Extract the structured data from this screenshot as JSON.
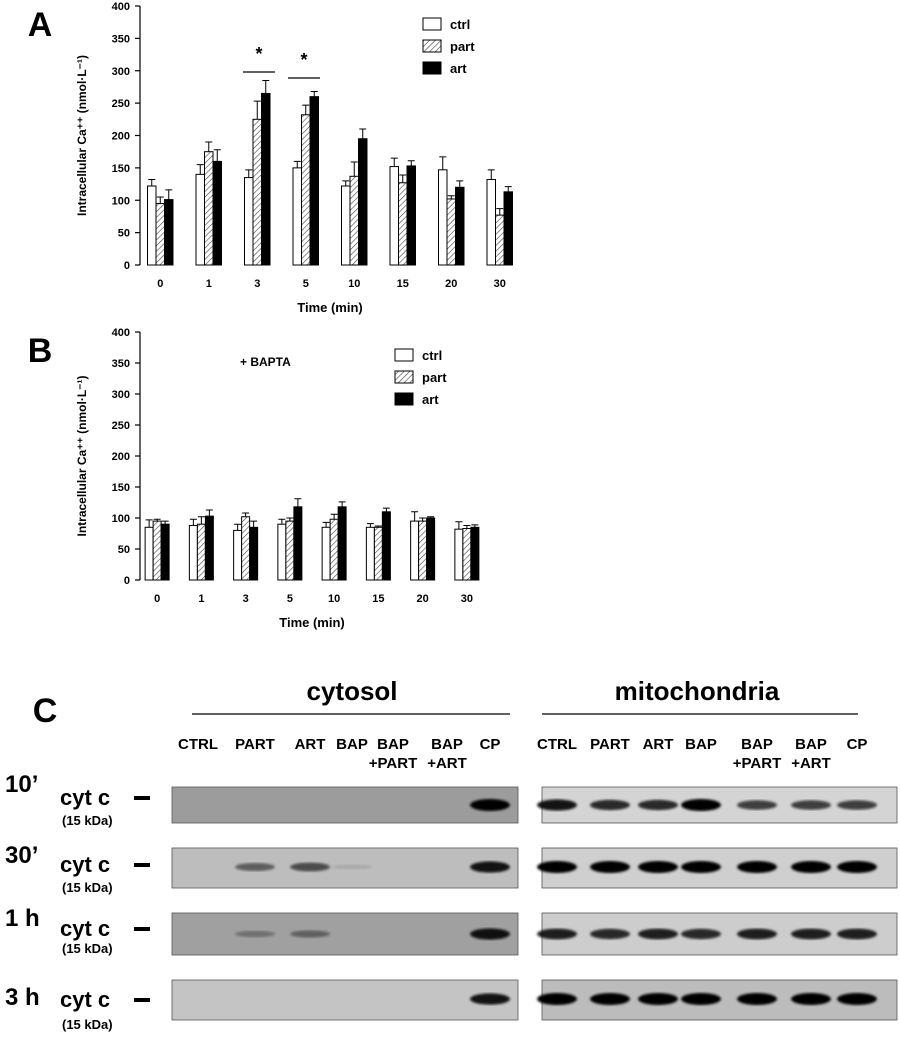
{
  "chart_data": [
    {
      "type": "bar",
      "panel": "A",
      "ylabel": "Intracellular Ca⁺⁺ (nmol·L⁻¹)",
      "xlabel": "Time (min)",
      "categories": [
        "0",
        "1",
        "3",
        "5",
        "10",
        "15",
        "20",
        "30"
      ],
      "series": [
        {
          "name": "ctrl",
          "color": "#ffffff",
          "values": [
            122,
            140,
            135,
            150,
            122,
            152,
            147,
            132
          ],
          "errors": [
            10,
            15,
            12,
            10,
            8,
            13,
            20,
            15
          ]
        },
        {
          "name": "part",
          "color": "#ffffff",
          "hatch": true,
          "values": [
            95,
            175,
            225,
            232,
            137,
            127,
            102,
            77
          ],
          "errors": [
            10,
            15,
            28,
            15,
            22,
            12,
            5,
            10
          ]
        },
        {
          "name": "art",
          "color": "#000000",
          "values": [
            101,
            160,
            265,
            260,
            195,
            153,
            120,
            113
          ],
          "errors": [
            15,
            18,
            20,
            8,
            15,
            8,
            10,
            8
          ]
        }
      ],
      "ylim": [
        0,
        400
      ],
      "yticks": [
        0,
        50,
        100,
        150,
        200,
        250,
        300,
        350,
        400
      ],
      "annotations": [
        "*",
        "*"
      ]
    },
    {
      "type": "bar",
      "panel": "B",
      "ylabel": "Intracellular Ca⁺⁺ (nmol·L⁻¹)",
      "xlabel": "Time (min)",
      "categories": [
        "0",
        "1",
        "3",
        "5",
        "10",
        "15",
        "20",
        "30"
      ],
      "series": [
        {
          "name": "ctrl",
          "color": "#ffffff",
          "values": [
            85,
            88,
            80,
            90,
            85,
            85,
            95,
            82
          ],
          "errors": [
            12,
            10,
            10,
            8,
            8,
            6,
            15,
            12
          ]
        },
        {
          "name": "part",
          "color": "#ffffff",
          "hatch": true,
          "values": [
            95,
            90,
            102,
            95,
            98,
            85,
            95,
            83
          ],
          "errors": [
            3,
            12,
            6,
            5,
            8,
            2,
            5,
            5
          ]
        },
        {
          "name": "art",
          "color": "#000000",
          "values": [
            90,
            103,
            85,
            118,
            118,
            110,
            100,
            85
          ],
          "errors": [
            5,
            10,
            10,
            13,
            8,
            6,
            2,
            4
          ]
        }
      ],
      "ylim": [
        0,
        400
      ],
      "yticks": [
        0,
        50,
        100,
        150,
        200,
        250,
        300,
        350,
        400
      ],
      "annotations": [
        "+ BAPTA"
      ]
    }
  ],
  "blot": {
    "panel": "C",
    "fractions": [
      {
        "name": "cytosol",
        "lanes": [
          [
            "CTRL"
          ],
          [
            "PART"
          ],
          [
            "ART"
          ],
          [
            "BAP"
          ],
          [
            "BAP",
            "+PART"
          ],
          [
            "BAP",
            "+ART"
          ],
          [
            "CP"
          ]
        ]
      },
      {
        "name": "mitochondria",
        "lanes": [
          [
            "CTRL"
          ],
          [
            "PART"
          ],
          [
            "ART"
          ],
          [
            "BAP"
          ],
          [
            "BAP",
            "+PART"
          ],
          [
            "BAP",
            "+ART"
          ],
          [
            "CP"
          ]
        ]
      }
    ],
    "rows": [
      {
        "time": "10’",
        "protein": "cyt c",
        "size": "(15 kDa)"
      },
      {
        "time": "30’",
        "protein": "cyt c",
        "size": "(15 kDa)"
      },
      {
        "time": "1 h",
        "protein": "cyt c",
        "size": "(15 kDa)"
      },
      {
        "time": "3 h",
        "protein": "cyt c",
        "size": "(15 kDa)"
      }
    ]
  }
}
